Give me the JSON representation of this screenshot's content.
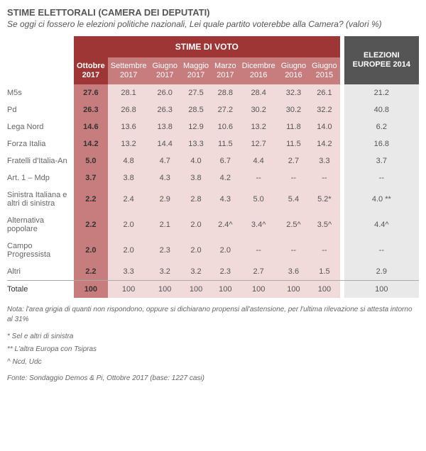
{
  "title": "STIME ELETTORALI (CAMERA DEI DEPUTATI)",
  "subtitle": "Se oggi ci fossero le elezioni politiche nazionali, Lei quale partito voterebbe alla Camera? (valori %)",
  "group_header": "STIME DI VOTO",
  "eur_header": "ELEZIONI EUROPEE 2014",
  "columns": [
    {
      "label": "Ottobre 2017",
      "kind": "current"
    },
    {
      "label": "Settembre 2017",
      "kind": "prev"
    },
    {
      "label": "Giugno 2017",
      "kind": "prev"
    },
    {
      "label": "Maggio 2017",
      "kind": "prev"
    },
    {
      "label": "Marzo 2017",
      "kind": "prev"
    },
    {
      "label": "Dicembre 2016",
      "kind": "prev"
    },
    {
      "label": "Giugno 2016",
      "kind": "prev"
    },
    {
      "label": "Giugno 2015",
      "kind": "prev"
    }
  ],
  "rows": [
    {
      "label": "M5s",
      "vals": [
        "27.6",
        "28.1",
        "26.0",
        "27.5",
        "28.8",
        "28.4",
        "32.3",
        "26.1"
      ],
      "eur": "21.2"
    },
    {
      "label": "Pd",
      "vals": [
        "26.3",
        "26.8",
        "26.3",
        "28.5",
        "27.2",
        "30.2",
        "30.2",
        "32.2"
      ],
      "eur": "40.8"
    },
    {
      "label": "Lega Nord",
      "vals": [
        "14.6",
        "13.6",
        "13.8",
        "12.9",
        "10.6",
        "13.2",
        "11.8",
        "14.0"
      ],
      "eur": "6.2"
    },
    {
      "label": "Forza Italia",
      "vals": [
        "14.2",
        "13.2",
        "14.4",
        "13.3",
        "11.5",
        "12.7",
        "11.5",
        "14.2"
      ],
      "eur": "16.8"
    },
    {
      "label": "Fratelli d'Italia-An",
      "vals": [
        "5.0",
        "4.8",
        "4.7",
        "4.0",
        "6.7",
        "4.4",
        "2.7",
        "3.3"
      ],
      "eur": "3.7"
    },
    {
      "label": "Art. 1 – Mdp",
      "vals": [
        "3.7",
        "3.8",
        "4.3",
        "3.8",
        "4.2",
        "--",
        "--",
        "--"
      ],
      "eur": "--"
    },
    {
      "label": "Sinistra Italiana e altri di sinistra",
      "vals": [
        "2.2",
        "2.4",
        "2.9",
        "2.8",
        "4.3",
        "5.0",
        "5.4",
        "5.2*"
      ],
      "eur": "4.0 **"
    },
    {
      "label": "Alternativa popolare",
      "vals": [
        "2.2",
        "2.0",
        "2.1",
        "2.0",
        "2.4^",
        "3.4^",
        "2.5^",
        "3.5^"
      ],
      "eur": "4.4^"
    },
    {
      "label": "Campo Progressista",
      "vals": [
        "2.0",
        "2.0",
        "2.3",
        "2.0",
        "2.0",
        "--",
        "--",
        "--"
      ],
      "eur": "--"
    },
    {
      "label": "Altri",
      "vals": [
        "2.2",
        "3.3",
        "3.2",
        "3.2",
        "2.3",
        "2.7",
        "3.6",
        "1.5"
      ],
      "eur": "2.9"
    }
  ],
  "total": {
    "label": "Totale",
    "vals": [
      "100",
      "100",
      "100",
      "100",
      "100",
      "100",
      "100",
      "100"
    ],
    "eur": "100"
  },
  "notes": [
    "Nota: l'area grigia di quanti non rispondono, oppure si dichiarano propensi all'astensione, per l'ultima rilevazione si attesta intorno al 31%",
    "* Sel e altri di sinistra",
    "** L'altra Europa con Tsipras",
    "^ Ncd, Udc"
  ],
  "source": "Fonte: Sondaggio Demos & Pi, Ottobre 2017 (base: 1227 casi)",
  "colors": {
    "header_dark": "#9e3636",
    "header_light": "#c77d7d",
    "cell_pink": "#f0dada",
    "eur_dark": "#555555",
    "eur_light": "#e9e9e9"
  }
}
